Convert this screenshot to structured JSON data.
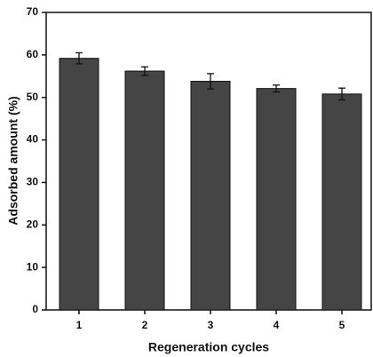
{
  "chart_data": {
    "type": "bar",
    "x_label": "Regeneration cycles",
    "y_label": "Adsorbed amount (%)",
    "categories": [
      "1",
      "2",
      "3",
      "4",
      "5"
    ],
    "values": [
      59.2,
      56.2,
      53.8,
      52.1,
      50.8
    ],
    "errors": [
      1.3,
      1.0,
      1.8,
      0.8,
      1.4
    ],
    "color": "#454545",
    "ylim": [
      0,
      70
    ],
    "yticks": [
      0,
      10,
      20,
      30,
      40,
      50,
      60,
      70
    ]
  }
}
